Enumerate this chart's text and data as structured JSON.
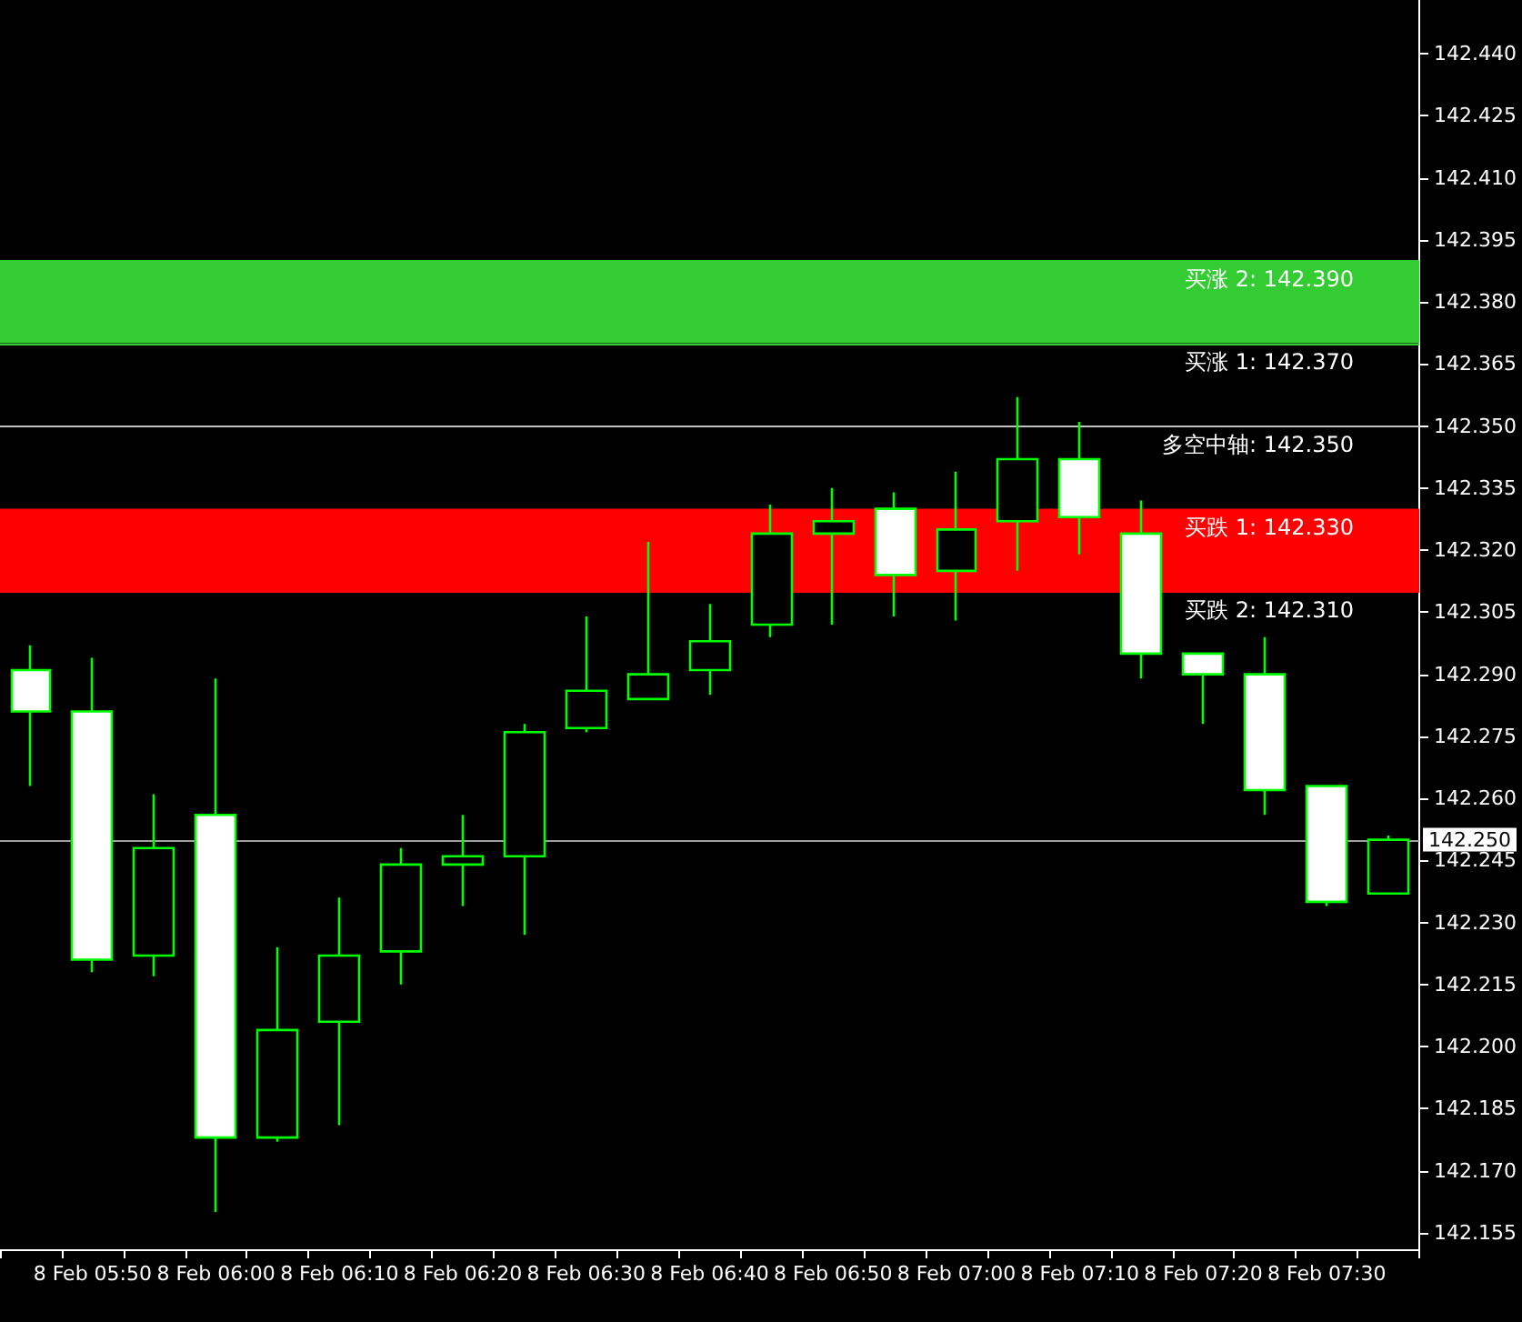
{
  "chart_data": {
    "type": "candlestick",
    "categories": [
      null,
      "8 Feb 05:50",
      null,
      "8 Feb 06:00",
      null,
      "8 Feb 06:10",
      null,
      "8 Feb 06:20",
      null,
      "8 Feb 06:30",
      null,
      "8 Feb 06:40",
      null,
      "8 Feb 06:50",
      null,
      "8 Feb 07:00",
      null,
      "8 Feb 07:10",
      null,
      "8 Feb 07:20",
      null,
      "8 Feb 07:30",
      null
    ],
    "ohlc": [
      [
        142.291,
        142.297,
        142.263,
        142.281
      ],
      [
        142.281,
        142.294,
        142.218,
        142.221
      ],
      [
        142.222,
        142.261,
        142.217,
        142.248
      ],
      [
        142.256,
        142.289,
        142.16,
        142.178
      ],
      [
        142.178,
        142.224,
        142.177,
        142.204
      ],
      [
        142.206,
        142.236,
        142.181,
        142.222
      ],
      [
        142.223,
        142.248,
        142.215,
        142.244
      ],
      [
        142.244,
        142.256,
        142.234,
        142.246
      ],
      [
        142.246,
        142.278,
        142.227,
        142.276
      ],
      [
        142.277,
        142.304,
        142.276,
        142.286
      ],
      [
        142.284,
        142.322,
        142.284,
        142.29
      ],
      [
        142.291,
        142.307,
        142.285,
        142.298
      ],
      [
        142.302,
        142.331,
        142.299,
        142.324
      ],
      [
        142.324,
        142.335,
        142.302,
        142.327
      ],
      [
        142.33,
        142.334,
        142.304,
        142.314
      ],
      [
        142.315,
        142.339,
        142.303,
        142.325
      ],
      [
        142.327,
        142.357,
        142.315,
        142.342
      ],
      [
        142.342,
        142.351,
        142.319,
        142.328
      ],
      [
        142.324,
        142.332,
        142.289,
        142.295
      ],
      [
        142.295,
        142.295,
        142.278,
        142.29
      ],
      [
        142.29,
        142.299,
        142.256,
        142.262
      ],
      [
        142.263,
        142.263,
        142.234,
        142.235
      ],
      [
        142.237,
        142.251,
        142.237,
        142.25
      ]
    ],
    "color": "#00ff00",
    "ylim": [
      142.151,
      142.453
    ],
    "yticks": [
      {
        "value": 142.155,
        "label": "142.155"
      },
      {
        "value": 142.17,
        "label": "142.170"
      },
      {
        "value": 142.185,
        "label": "142.185"
      },
      {
        "value": 142.2,
        "label": "142.200"
      },
      {
        "value": 142.215,
        "label": "142.215"
      },
      {
        "value": 142.23,
        "label": "142.230"
      },
      {
        "value": 142.245,
        "label": "142.245"
      },
      {
        "value": 142.26,
        "label": "142.260"
      },
      {
        "value": 142.275,
        "label": "142.275"
      },
      {
        "value": 142.29,
        "label": "142.290"
      },
      {
        "value": 142.305,
        "label": "142.305"
      },
      {
        "value": 142.32,
        "label": "142.320"
      },
      {
        "value": 142.335,
        "label": "142.335"
      },
      {
        "value": 142.35,
        "label": "142.350"
      },
      {
        "value": 142.365,
        "label": "142.365"
      },
      {
        "value": 142.38,
        "label": "142.380"
      },
      {
        "value": 142.395,
        "label": "142.395"
      },
      {
        "value": 142.41,
        "label": "142.410"
      },
      {
        "value": 142.425,
        "label": "142.425"
      },
      {
        "value": 142.44,
        "label": "142.440"
      }
    ],
    "bands": [
      {
        "axis": "y",
        "from": 142.37,
        "to": 142.39,
        "color": "#33cc33"
      },
      {
        "axis": "y",
        "from": 142.31,
        "to": 142.33,
        "color": "#ff0000"
      }
    ],
    "ref_lines": [
      {
        "axis": "y",
        "value": 142.39,
        "label": "买涨 2: 142.390",
        "color": "#33cc33"
      },
      {
        "axis": "y",
        "value": 142.37,
        "label": "买涨 1: 142.370",
        "color": "#33cc33"
      },
      {
        "axis": "y",
        "value": 142.35,
        "label": "多空中轴: 142.350",
        "color": "#c0c0c0"
      },
      {
        "axis": "y",
        "value": 142.33,
        "label": "买跌 1: 142.330",
        "color": "#ff0000"
      },
      {
        "axis": "y",
        "value": 142.31,
        "label": "买跌 2: 142.310",
        "color": "#ff0000"
      },
      {
        "axis": "y",
        "value": 142.25,
        "label": "142.250",
        "color": "#a0a0a0"
      }
    ],
    "grid": false
  }
}
